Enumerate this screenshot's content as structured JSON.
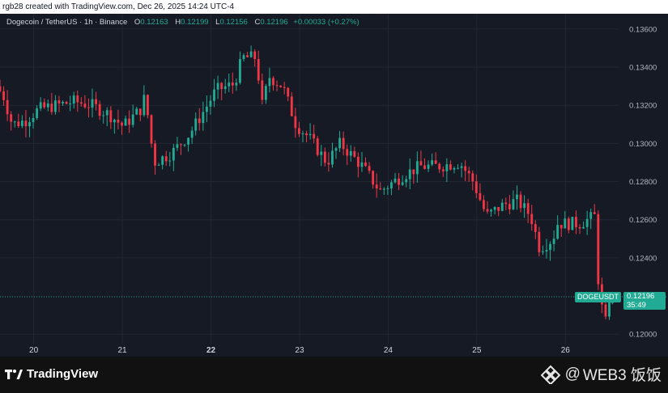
{
  "header": {
    "created_text": "rgb28 created with TradingView.com, Dec 26, 2025 14:24 UTC-4"
  },
  "legend": {
    "symbol": "Dogecoin / TetherUS · 1h · Binance",
    "o_label": "O",
    "o_value": "0.12163",
    "h_label": "H",
    "h_value": "0.12199",
    "l_label": "L",
    "l_value": "0.12156",
    "c_label": "C",
    "c_value": "0.12196",
    "change": "+0.00033 (+0.27%)"
  },
  "price_tag": {
    "ticker": "DOGEUSDT",
    "price": "0.12196",
    "countdown": "35:49"
  },
  "footer": {
    "logo_text": "TradingView",
    "watermark_text": "WEB3 饭饭",
    "watermark_at": "@"
  },
  "colors": {
    "up": "#22ab94",
    "down": "#f23645",
    "background": "#161a25",
    "grid": "#232734",
    "axis_text": "#b2b5be"
  },
  "chart_data": {
    "type": "candlestick",
    "title": "Dogecoin / TetherUS · 1h · Binance",
    "xlabel": "",
    "ylabel": "",
    "ylim": [
      0.1195,
      0.1368
    ],
    "yticks": [
      0.12,
      0.124,
      0.126,
      0.128,
      0.13,
      0.132,
      0.134,
      0.136
    ],
    "ytick_labels": [
      "0.12000",
      "0.12400",
      "0.12600",
      "0.12800",
      "0.13000",
      "0.13200",
      "0.13400",
      "0.13600"
    ],
    "xticks": [
      {
        "label": "20",
        "pos": 20
      },
      {
        "label": "21",
        "pos": 21
      },
      {
        "label": "22",
        "pos": 22
      },
      {
        "label": "23",
        "pos": 23
      },
      {
        "label": "24",
        "pos": 24
      },
      {
        "label": "25",
        "pos": 25
      },
      {
        "label": "26",
        "pos": 26
      }
    ],
    "xlim": [
      19.62,
      26.6
    ],
    "bold_tick": "22",
    "current_price": 0.12196,
    "grid": true,
    "anchors": [
      [
        19.62,
        0.133
      ],
      [
        19.7,
        0.1325
      ],
      [
        19.8,
        0.131
      ],
      [
        19.95,
        0.1312
      ],
      [
        20.1,
        0.1318
      ],
      [
        20.3,
        0.132
      ],
      [
        20.5,
        0.1322
      ],
      [
        20.7,
        0.132
      ],
      [
        20.9,
        0.1315
      ],
      [
        21.05,
        0.1309
      ],
      [
        21.25,
        0.1318
      ],
      [
        21.3,
        0.1325
      ],
      [
        21.37,
        0.13
      ],
      [
        21.4,
        0.129
      ],
      [
        21.6,
        0.1295
      ],
      [
        21.8,
        0.1305
      ],
      [
        22.0,
        0.132
      ],
      [
        22.1,
        0.1328
      ],
      [
        22.3,
        0.1331
      ],
      [
        22.4,
        0.1345
      ],
      [
        22.55,
        0.1345
      ],
      [
        22.62,
        0.132
      ],
      [
        22.7,
        0.1335
      ],
      [
        22.85,
        0.133
      ],
      [
        23.0,
        0.131
      ],
      [
        23.15,
        0.1303
      ],
      [
        23.35,
        0.129
      ],
      [
        23.5,
        0.13
      ],
      [
        23.75,
        0.1288
      ],
      [
        23.95,
        0.1275
      ],
      [
        24.2,
        0.1283
      ],
      [
        24.4,
        0.1288
      ],
      [
        24.6,
        0.1288
      ],
      [
        24.85,
        0.129
      ],
      [
        25.0,
        0.128
      ],
      [
        25.15,
        0.1262
      ],
      [
        25.35,
        0.1268
      ],
      [
        25.5,
        0.127
      ],
      [
        25.65,
        0.1262
      ],
      [
        25.75,
        0.1245
      ],
      [
        25.9,
        0.125
      ],
      [
        25.95,
        0.1258
      ],
      [
        26.2,
        0.1258
      ],
      [
        26.38,
        0.1262
      ],
      [
        26.42,
        0.122
      ],
      [
        26.5,
        0.1205
      ],
      [
        26.53,
        0.12196
      ]
    ]
  }
}
